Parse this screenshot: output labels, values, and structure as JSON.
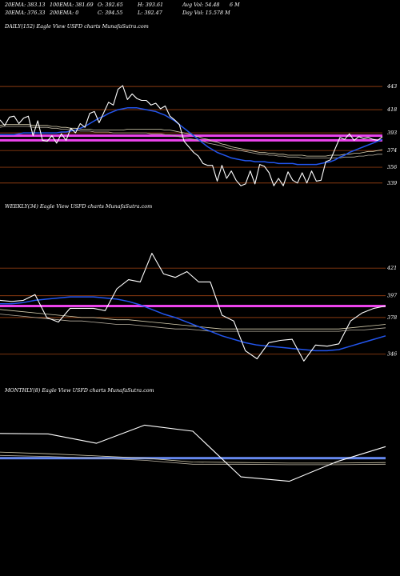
{
  "header": {
    "row1": [
      {
        "key": "ema20",
        "text": "20EMA: 383.13"
      },
      {
        "key": "ema100",
        "text": "100EMA: 381.69"
      },
      {
        "key": "open",
        "text": "O: 392.65"
      },
      {
        "key": "high",
        "text": "H: 393.61"
      },
      {
        "key": "avgvol",
        "text": "Avg Vol: 54.48"
      },
      {
        "key": "avgvol_unit",
        "text": "6  M"
      }
    ],
    "row2": [
      {
        "key": "ema30",
        "text": "30EMA: 376.33"
      },
      {
        "key": "ema200",
        "text": "200EMA: 0"
      },
      {
        "key": "close",
        "text": "C: 394.55"
      },
      {
        "key": "low",
        "text": "L: 392.47"
      },
      {
        "key": "dayvol",
        "text": "Day Vol: 15.578  M"
      }
    ]
  },
  "colors": {
    "background": "#000000",
    "price": "#ffffff",
    "ema_fast": "#2255ee",
    "ema_slow_1": "#d8d0b0",
    "ema_slow_2": "#b8b0a0",
    "level_line": "#8a3a10",
    "highlight": "#ee44ee",
    "monthly_band": "#6688ee"
  },
  "chart_data": [
    {
      "id": "daily",
      "type": "line",
      "title": "DAILY(152) Eagle   View  USFD charts MunafaSutra.com",
      "ylim": [
        325,
        500
      ],
      "y_ticks": [
        339,
        356,
        374,
        393,
        418,
        443
      ],
      "levels": [
        443,
        418,
        393,
        374,
        356,
        339
      ],
      "highlights": [
        390,
        385
      ],
      "series": [
        {
          "role": "price",
          "values": [
            407,
            401,
            410,
            411,
            403,
            409,
            411,
            390,
            406,
            385,
            384,
            390,
            382,
            392,
            385,
            398,
            393,
            403,
            399,
            414,
            416,
            404,
            415,
            426,
            423,
            440,
            444,
            429,
            435,
            430,
            428,
            428,
            423,
            425,
            419,
            422,
            411,
            407,
            402,
            384,
            378,
            372,
            368,
            360,
            358,
            358,
            341,
            358,
            344,
            352,
            342,
            336,
            338,
            352,
            338,
            359,
            357,
            350,
            336,
            344,
            336,
            351,
            342,
            339,
            350,
            339,
            352,
            341,
            342,
            362,
            364,
            376,
            388,
            386,
            392,
            385,
            389,
            387,
            388,
            386,
            385,
            389
          ]
        },
        {
          "role": "ema_fast",
          "values": [
            391,
            391,
            391,
            391,
            392,
            393,
            393,
            393,
            393,
            393,
            393,
            393,
            393,
            394,
            394,
            395,
            396,
            398,
            400,
            403,
            406,
            409,
            411,
            414,
            416,
            418,
            419,
            420,
            420,
            420,
            419,
            418,
            417,
            416,
            414,
            412,
            409,
            406,
            402,
            398,
            394,
            390,
            386,
            382,
            378,
            375,
            372,
            370,
            368,
            366,
            365,
            364,
            363,
            363,
            362,
            362,
            362,
            361,
            361,
            360,
            360,
            360,
            360,
            359,
            359,
            359,
            359,
            359,
            360,
            361,
            362,
            364,
            367,
            369,
            372,
            374,
            376,
            378,
            380,
            382,
            384,
            386
          ]
        },
        {
          "role": "ema_slow",
          "values": [
            401,
            402,
            402,
            402,
            402,
            402,
            402,
            401,
            401,
            401,
            401,
            400,
            400,
            399,
            399,
            398,
            398,
            397,
            397,
            397,
            396,
            396,
            396,
            396,
            396,
            396,
            396,
            397,
            397,
            397,
            397,
            397,
            397,
            397,
            397,
            396,
            396,
            395,
            394,
            393,
            392,
            390,
            389,
            387,
            386,
            384,
            383,
            381,
            380,
            378,
            377,
            376,
            375,
            374,
            373,
            372,
            372,
            371,
            371,
            370,
            370,
            369,
            369,
            369,
            369,
            368,
            368,
            368,
            368,
            368,
            369,
            369,
            369,
            370,
            370,
            371,
            371,
            372,
            373,
            373,
            374,
            375
          ]
        },
        {
          "role": "ema_slow_2",
          "values": [
            399,
            400,
            400,
            400,
            400,
            400,
            400,
            399,
            399,
            399,
            399,
            398,
            398,
            397,
            397,
            396,
            396,
            395,
            395,
            395,
            394,
            394,
            394,
            394,
            393,
            393,
            393,
            393,
            393,
            393,
            393,
            393,
            392,
            392,
            392,
            391,
            391,
            390,
            389,
            388,
            387,
            386,
            385,
            384,
            382,
            381,
            380,
            379,
            377,
            376,
            375,
            374,
            373,
            372,
            371,
            370,
            370,
            369,
            369,
            368,
            368,
            367,
            367,
            367,
            366,
            366,
            366,
            366,
            366,
            366,
            366,
            366,
            366,
            367,
            367,
            367,
            368,
            368,
            369,
            369,
            370,
            370
          ]
        }
      ]
    },
    {
      "id": "weekly",
      "type": "line",
      "title": "WEEKLY(34) Eagle   View  USFD charts MunafaSutra.com",
      "ylim": [
        320,
        470
      ],
      "y_ticks": [
        346,
        378,
        397,
        421
      ],
      "levels": [
        421,
        397,
        378,
        346
      ],
      "highlights": [
        388
      ],
      "series": [
        {
          "role": "price",
          "values": [
            393,
            392,
            393,
            398,
            378,
            374,
            386,
            386,
            386,
            384,
            403,
            411,
            409,
            434,
            416,
            413,
            418,
            409,
            409,
            380,
            375,
            349,
            342,
            356,
            358,
            359,
            340,
            354,
            353,
            355,
            375,
            382,
            386,
            388
          ]
        },
        {
          "role": "ema_fast",
          "values": [
            390,
            390,
            391,
            393,
            394,
            395,
            396,
            396,
            396,
            395,
            394,
            392,
            389,
            385,
            381,
            378,
            374,
            370,
            366,
            362,
            359,
            356,
            354,
            353,
            352,
            351,
            350,
            349,
            349,
            350,
            353,
            356,
            359,
            362
          ]
        },
        {
          "role": "ema_slow",
          "values": [
            385,
            384,
            383,
            382,
            381,
            380,
            379,
            378,
            378,
            377,
            376,
            376,
            375,
            374,
            373,
            372,
            371,
            370,
            369,
            368,
            368,
            368,
            368,
            368,
            368,
            368,
            368,
            368,
            368,
            368,
            369,
            370,
            371,
            372
          ]
        },
        {
          "role": "ema_slow_2",
          "values": [
            381,
            380,
            379,
            378,
            377,
            376,
            375,
            375,
            374,
            373,
            372,
            372,
            371,
            370,
            369,
            368,
            368,
            367,
            366,
            366,
            366,
            366,
            366,
            366,
            366,
            366,
            366,
            366,
            366,
            366,
            367,
            367,
            368,
            369
          ]
        }
      ]
    },
    {
      "id": "monthly",
      "type": "line",
      "title": "MONTHLY(8) Eagle   View  USFD charts MunafaSutra.com",
      "ylim": [
        140,
        460
      ],
      "y_ticks": [],
      "levels": [],
      "highlights": [
        347
      ],
      "series": [
        {
          "role": "price",
          "values": [
            392,
            391,
            374,
            407,
            396,
            313,
            305,
            341,
            368
          ]
        },
        {
          "role": "ema_slow",
          "values": [
            358,
            355,
            351,
            347,
            340,
            339,
            338,
            338,
            339
          ]
        },
        {
          "role": "ema_slow_2",
          "values": [
            352,
            350,
            347,
            343,
            336,
            336,
            335,
            335,
            336
          ]
        }
      ]
    }
  ]
}
